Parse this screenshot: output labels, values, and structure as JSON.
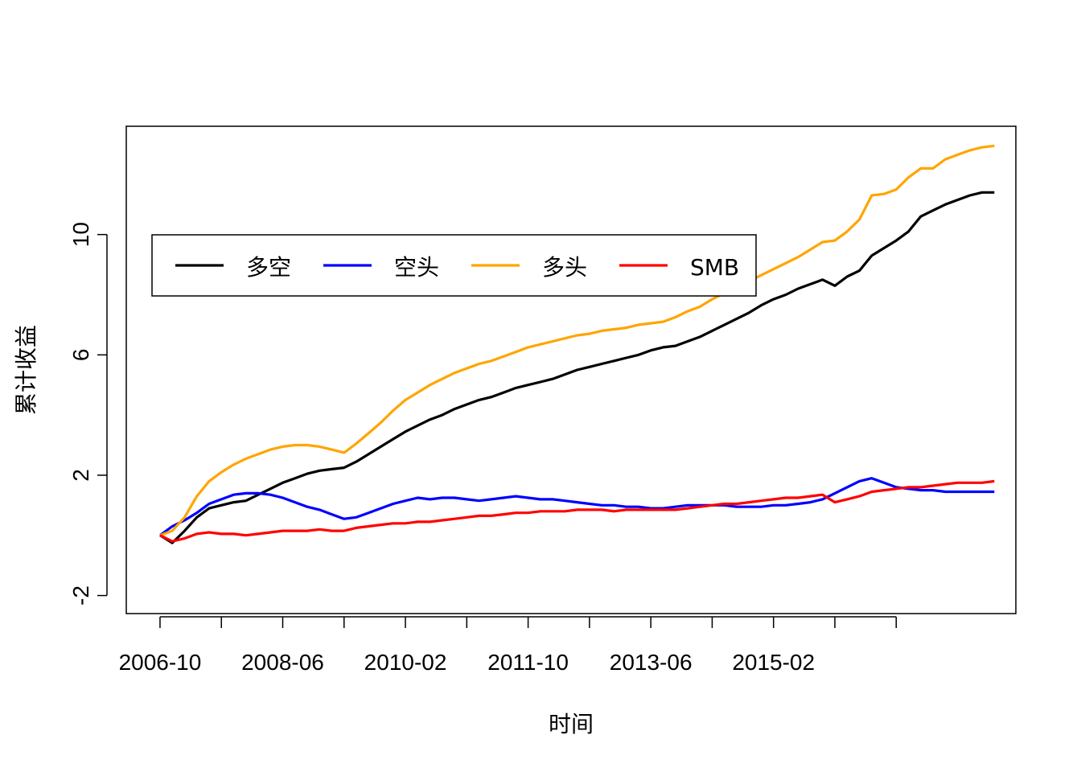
{
  "chart_data": {
    "type": "line",
    "title": "",
    "xlabel": "时间",
    "ylabel": "累计收益",
    "ylim": [
      -2.6,
      13.6
    ],
    "yticks": [
      -2,
      2,
      6,
      10
    ],
    "xlim": [
      -5.5,
      139.5
    ],
    "x_tick_positions": [
      0,
      10,
      20,
      30,
      40,
      50,
      60,
      70,
      80,
      90,
      100,
      110,
      120
    ],
    "x_tick_labels": [
      "2006-10",
      "",
      "2008-06",
      "",
      "2010-02",
      "",
      "2011-10",
      "",
      "2013-06",
      "",
      "2015-02",
      "",
      ""
    ],
    "grid": false,
    "legend": {
      "position": "top-left",
      "horizontal": true
    },
    "series": [
      {
        "name": "多空",
        "color": "#000000",
        "points": [
          [
            0,
            0.0
          ],
          [
            2,
            -0.25
          ],
          [
            4,
            0.15
          ],
          [
            6,
            0.6
          ],
          [
            8,
            0.9
          ],
          [
            10,
            1.0
          ],
          [
            12,
            1.1
          ],
          [
            14,
            1.15
          ],
          [
            16,
            1.35
          ],
          [
            18,
            1.55
          ],
          [
            20,
            1.75
          ],
          [
            22,
            1.9
          ],
          [
            24,
            2.05
          ],
          [
            26,
            2.15
          ],
          [
            28,
            2.2
          ],
          [
            30,
            2.25
          ],
          [
            32,
            2.45
          ],
          [
            34,
            2.7
          ],
          [
            36,
            2.95
          ],
          [
            38,
            3.2
          ],
          [
            40,
            3.45
          ],
          [
            42,
            3.65
          ],
          [
            44,
            3.85
          ],
          [
            46,
            4.0
          ],
          [
            48,
            4.2
          ],
          [
            50,
            4.35
          ],
          [
            52,
            4.5
          ],
          [
            54,
            4.6
          ],
          [
            56,
            4.75
          ],
          [
            58,
            4.9
          ],
          [
            60,
            5.0
          ],
          [
            62,
            5.1
          ],
          [
            64,
            5.2
          ],
          [
            66,
            5.35
          ],
          [
            68,
            5.5
          ],
          [
            70,
            5.6
          ],
          [
            72,
            5.7
          ],
          [
            74,
            5.8
          ],
          [
            76,
            5.9
          ],
          [
            78,
            6.0
          ],
          [
            80,
            6.15
          ],
          [
            82,
            6.25
          ],
          [
            84,
            6.3
          ],
          [
            86,
            6.45
          ],
          [
            88,
            6.6
          ],
          [
            90,
            6.8
          ],
          [
            92,
            7.0
          ],
          [
            94,
            7.2
          ],
          [
            96,
            7.4
          ],
          [
            98,
            7.65
          ],
          [
            100,
            7.85
          ],
          [
            102,
            8.0
          ],
          [
            104,
            8.2
          ],
          [
            106,
            8.35
          ],
          [
            108,
            8.5
          ],
          [
            110,
            8.3
          ],
          [
            112,
            8.6
          ],
          [
            114,
            8.8
          ],
          [
            116,
            9.3
          ],
          [
            118,
            9.55
          ],
          [
            120,
            9.8
          ],
          [
            122,
            10.1
          ],
          [
            124,
            10.6
          ],
          [
            126,
            10.8
          ],
          [
            128,
            11.0
          ],
          [
            130,
            11.15
          ],
          [
            132,
            11.3
          ],
          [
            134,
            11.4
          ],
          [
            136,
            11.4
          ]
        ]
      },
      {
        "name": "空头",
        "color": "#0000ff",
        "points": [
          [
            0,
            0.0
          ],
          [
            2,
            0.3
          ],
          [
            4,
            0.5
          ],
          [
            6,
            0.75
          ],
          [
            8,
            1.05
          ],
          [
            10,
            1.2
          ],
          [
            12,
            1.35
          ],
          [
            14,
            1.4
          ],
          [
            16,
            1.4
          ],
          [
            18,
            1.35
          ],
          [
            20,
            1.25
          ],
          [
            22,
            1.1
          ],
          [
            24,
            0.95
          ],
          [
            26,
            0.85
          ],
          [
            28,
            0.7
          ],
          [
            30,
            0.55
          ],
          [
            32,
            0.6
          ],
          [
            34,
            0.75
          ],
          [
            36,
            0.9
          ],
          [
            38,
            1.05
          ],
          [
            40,
            1.15
          ],
          [
            42,
            1.25
          ],
          [
            44,
            1.2
          ],
          [
            46,
            1.25
          ],
          [
            48,
            1.25
          ],
          [
            50,
            1.2
          ],
          [
            52,
            1.15
          ],
          [
            54,
            1.2
          ],
          [
            56,
            1.25
          ],
          [
            58,
            1.3
          ],
          [
            60,
            1.25
          ],
          [
            62,
            1.2
          ],
          [
            64,
            1.2
          ],
          [
            66,
            1.15
          ],
          [
            68,
            1.1
          ],
          [
            70,
            1.05
          ],
          [
            72,
            1.0
          ],
          [
            74,
            1.0
          ],
          [
            76,
            0.95
          ],
          [
            78,
            0.95
          ],
          [
            80,
            0.9
          ],
          [
            82,
            0.9
          ],
          [
            84,
            0.95
          ],
          [
            86,
            1.0
          ],
          [
            88,
            1.0
          ],
          [
            90,
            1.0
          ],
          [
            92,
            1.0
          ],
          [
            94,
            0.95
          ],
          [
            96,
            0.95
          ],
          [
            98,
            0.95
          ],
          [
            100,
            1.0
          ],
          [
            102,
            1.0
          ],
          [
            104,
            1.05
          ],
          [
            106,
            1.1
          ],
          [
            108,
            1.2
          ],
          [
            110,
            1.4
          ],
          [
            112,
            1.6
          ],
          [
            114,
            1.8
          ],
          [
            116,
            1.9
          ],
          [
            118,
            1.75
          ],
          [
            120,
            1.6
          ],
          [
            122,
            1.55
          ],
          [
            124,
            1.5
          ],
          [
            126,
            1.5
          ],
          [
            128,
            1.45
          ],
          [
            130,
            1.45
          ],
          [
            132,
            1.45
          ],
          [
            134,
            1.45
          ],
          [
            136,
            1.45
          ]
        ]
      },
      {
        "name": "多头",
        "color": "#ffa500",
        "points": [
          [
            0,
            0.0
          ],
          [
            2,
            0.15
          ],
          [
            4,
            0.6
          ],
          [
            6,
            1.3
          ],
          [
            8,
            1.8
          ],
          [
            10,
            2.1
          ],
          [
            12,
            2.35
          ],
          [
            14,
            2.55
          ],
          [
            16,
            2.7
          ],
          [
            18,
            2.85
          ],
          [
            20,
            2.95
          ],
          [
            22,
            3.0
          ],
          [
            24,
            3.0
          ],
          [
            26,
            2.95
          ],
          [
            28,
            2.85
          ],
          [
            30,
            2.75
          ],
          [
            32,
            3.05
          ],
          [
            34,
            3.4
          ],
          [
            36,
            3.75
          ],
          [
            38,
            4.15
          ],
          [
            40,
            4.5
          ],
          [
            42,
            4.75
          ],
          [
            44,
            5.0
          ],
          [
            46,
            5.2
          ],
          [
            48,
            5.4
          ],
          [
            50,
            5.55
          ],
          [
            52,
            5.7
          ],
          [
            54,
            5.8
          ],
          [
            56,
            5.95
          ],
          [
            58,
            6.1
          ],
          [
            60,
            6.25
          ],
          [
            62,
            6.35
          ],
          [
            64,
            6.45
          ],
          [
            66,
            6.55
          ],
          [
            68,
            6.65
          ],
          [
            70,
            6.7
          ],
          [
            72,
            6.8
          ],
          [
            74,
            6.85
          ],
          [
            76,
            6.9
          ],
          [
            78,
            7.0
          ],
          [
            80,
            7.05
          ],
          [
            82,
            7.1
          ],
          [
            84,
            7.25
          ],
          [
            86,
            7.45
          ],
          [
            88,
            7.6
          ],
          [
            90,
            7.85
          ],
          [
            92,
            8.05
          ],
          [
            94,
            8.25
          ],
          [
            96,
            8.45
          ],
          [
            98,
            8.65
          ],
          [
            100,
            8.85
          ],
          [
            102,
            9.05
          ],
          [
            104,
            9.25
          ],
          [
            106,
            9.5
          ],
          [
            108,
            9.75
          ],
          [
            110,
            9.8
          ],
          [
            112,
            10.1
          ],
          [
            114,
            10.5
          ],
          [
            116,
            11.3
          ],
          [
            118,
            11.35
          ],
          [
            120,
            11.5
          ],
          [
            122,
            11.9
          ],
          [
            124,
            12.2
          ],
          [
            126,
            12.2
          ],
          [
            128,
            12.5
          ],
          [
            130,
            12.65
          ],
          [
            132,
            12.8
          ],
          [
            134,
            12.9
          ],
          [
            136,
            12.95
          ]
        ]
      },
      {
        "name": "SMB",
        "color": "#ff0000",
        "points": [
          [
            0,
            0.0
          ],
          [
            2,
            -0.2
          ],
          [
            4,
            -0.1
          ],
          [
            6,
            0.05
          ],
          [
            8,
            0.1
          ],
          [
            10,
            0.05
          ],
          [
            12,
            0.05
          ],
          [
            14,
            0.0
          ],
          [
            16,
            0.05
          ],
          [
            18,
            0.1
          ],
          [
            20,
            0.15
          ],
          [
            22,
            0.15
          ],
          [
            24,
            0.15
          ],
          [
            26,
            0.2
          ],
          [
            28,
            0.15
          ],
          [
            30,
            0.15
          ],
          [
            32,
            0.25
          ],
          [
            34,
            0.3
          ],
          [
            36,
            0.35
          ],
          [
            38,
            0.4
          ],
          [
            40,
            0.4
          ],
          [
            42,
            0.45
          ],
          [
            44,
            0.45
          ],
          [
            46,
            0.5
          ],
          [
            48,
            0.55
          ],
          [
            50,
            0.6
          ],
          [
            52,
            0.65
          ],
          [
            54,
            0.65
          ],
          [
            56,
            0.7
          ],
          [
            58,
            0.75
          ],
          [
            60,
            0.75
          ],
          [
            62,
            0.8
          ],
          [
            64,
            0.8
          ],
          [
            66,
            0.8
          ],
          [
            68,
            0.85
          ],
          [
            70,
            0.85
          ],
          [
            72,
            0.85
          ],
          [
            74,
            0.8
          ],
          [
            76,
            0.85
          ],
          [
            78,
            0.85
          ],
          [
            80,
            0.85
          ],
          [
            82,
            0.85
          ],
          [
            84,
            0.85
          ],
          [
            86,
            0.9
          ],
          [
            88,
            0.95
          ],
          [
            90,
            1.0
          ],
          [
            92,
            1.05
          ],
          [
            94,
            1.05
          ],
          [
            96,
            1.1
          ],
          [
            98,
            1.15
          ],
          [
            100,
            1.2
          ],
          [
            102,
            1.25
          ],
          [
            104,
            1.25
          ],
          [
            106,
            1.3
          ],
          [
            108,
            1.35
          ],
          [
            110,
            1.1
          ],
          [
            112,
            1.2
          ],
          [
            114,
            1.3
          ],
          [
            116,
            1.45
          ],
          [
            118,
            1.5
          ],
          [
            120,
            1.55
          ],
          [
            122,
            1.6
          ],
          [
            124,
            1.6
          ],
          [
            126,
            1.65
          ],
          [
            128,
            1.7
          ],
          [
            130,
            1.75
          ],
          [
            132,
            1.75
          ],
          [
            134,
            1.75
          ],
          [
            136,
            1.8
          ]
        ]
      }
    ]
  }
}
